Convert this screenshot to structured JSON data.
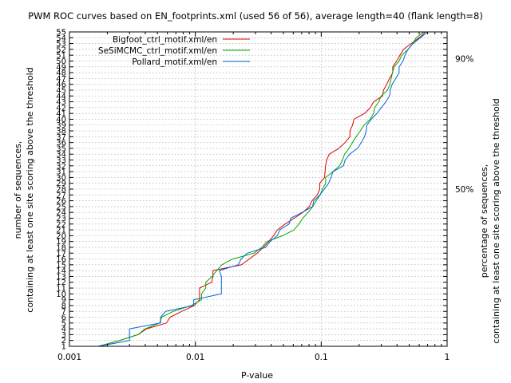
{
  "chart_data": {
    "type": "line",
    "title": "PWM ROC curves based on EN_footprints.xml (used 56 of 56), average length=40 (flank length=8)",
    "xlabel": "P-value",
    "ylabel_line1": "number of sequences,",
    "ylabel_line2": "containing at least one site scoring above the threshold",
    "y2label_line1": "percentage of sequences,",
    "y2label_line2": "containing at least one site scoring above the threshold",
    "xscale": "log",
    "xlim": [
      0.001,
      1
    ],
    "ylim": [
      1,
      55
    ],
    "grid": true,
    "legend_position": "top-right",
    "x_ticks": [
      {
        "value": 0.001,
        "label": "0.001"
      },
      {
        "value": 0.01,
        "label": "0.01"
      },
      {
        "value": 0.1,
        "label": "0.1"
      },
      {
        "value": 1,
        "label": "1"
      }
    ],
    "y_ticks": [
      "1",
      "2",
      "3",
      "4",
      "5",
      "6",
      "7",
      "8",
      "9",
      "10",
      "11",
      "12",
      "13",
      "14",
      "15",
      "16",
      "17",
      "18",
      "19",
      "20",
      "21",
      "22",
      "23",
      "24",
      "25",
      "26",
      "27",
      "28",
      "29",
      "30",
      "31",
      "32",
      "33",
      "34",
      "35",
      "36",
      "37",
      "38",
      "39",
      "40",
      "41",
      "42",
      "43",
      "44",
      "45",
      "46",
      "47",
      "48",
      "49",
      "50",
      "51",
      "52",
      "53",
      "54",
      "55"
    ],
    "y2_ticks": [
      {
        "value": 28,
        "label": "50%"
      },
      {
        "value": 50.4,
        "label": "90%"
      }
    ],
    "series": [
      {
        "name": "Bigfoot_ctrl_motif.xml/en",
        "color": "#dd0000",
        "points": [
          [
            0.0017,
            1
          ],
          [
            0.0025,
            2
          ],
          [
            0.0035,
            3
          ],
          [
            0.0041,
            4
          ],
          [
            0.0059,
            5
          ],
          [
            0.0063,
            6
          ],
          [
            0.0078,
            7
          ],
          [
            0.0098,
            8
          ],
          [
            0.0108,
            9
          ],
          [
            0.0108,
            10
          ],
          [
            0.0108,
            11
          ],
          [
            0.0135,
            12
          ],
          [
            0.0138,
            13
          ],
          [
            0.0138,
            14
          ],
          [
            0.0232,
            15
          ],
          [
            0.0268,
            16
          ],
          [
            0.031,
            17
          ],
          [
            0.0347,
            18
          ],
          [
            0.0383,
            19
          ],
          [
            0.0418,
            20
          ],
          [
            0.0448,
            21
          ],
          [
            0.0516,
            22
          ],
          [
            0.0611,
            23
          ],
          [
            0.0712,
            24
          ],
          [
            0.0804,
            25
          ],
          [
            0.0845,
            26
          ],
          [
            0.0931,
            27
          ],
          [
            0.0974,
            28
          ],
          [
            0.0974,
            29
          ],
          [
            0.1062,
            30
          ],
          [
            0.1072,
            31
          ],
          [
            0.1081,
            32
          ],
          [
            0.1105,
            33
          ],
          [
            0.1159,
            34
          ],
          [
            0.1381,
            35
          ],
          [
            0.1546,
            36
          ],
          [
            0.1692,
            37
          ],
          [
            0.1692,
            38
          ],
          [
            0.1775,
            39
          ],
          [
            0.1818,
            40
          ],
          [
            0.2216,
            41
          ],
          [
            0.2455,
            42
          ],
          [
            0.2607,
            43
          ],
          [
            0.3067,
            44
          ],
          [
            0.3124,
            45
          ],
          [
            0.3316,
            46
          ],
          [
            0.3478,
            47
          ],
          [
            0.3697,
            48
          ],
          [
            0.3697,
            49
          ],
          [
            0.3965,
            50
          ],
          [
            0.4227,
            51
          ],
          [
            0.4505,
            52
          ],
          [
            0.5176,
            53
          ],
          [
            0.6017,
            54
          ],
          [
            0.6726,
            55
          ]
        ]
      },
      {
        "name": "SeSiMCMC_ctrl_motif.xml/en",
        "color": "#00aa00",
        "points": [
          [
            0.0017,
            1
          ],
          [
            0.0025,
            2
          ],
          [
            0.0035,
            3
          ],
          [
            0.004,
            4
          ],
          [
            0.0052,
            5
          ],
          [
            0.0054,
            6
          ],
          [
            0.0067,
            7
          ],
          [
            0.0093,
            8
          ],
          [
            0.0112,
            9
          ],
          [
            0.0112,
            10
          ],
          [
            0.0121,
            11
          ],
          [
            0.0121,
            12
          ],
          [
            0.0136,
            13
          ],
          [
            0.0148,
            14
          ],
          [
            0.0162,
            15
          ],
          [
            0.0198,
            16
          ],
          [
            0.0292,
            17
          ],
          [
            0.0336,
            18
          ],
          [
            0.0371,
            19
          ],
          [
            0.0493,
            20
          ],
          [
            0.0608,
            21
          ],
          [
            0.0664,
            22
          ],
          [
            0.0714,
            23
          ],
          [
            0.0787,
            24
          ],
          [
            0.0857,
            25
          ],
          [
            0.0912,
            26
          ],
          [
            0.0981,
            27
          ],
          [
            0.1022,
            28
          ],
          [
            0.1085,
            29
          ],
          [
            0.1085,
            30
          ],
          [
            0.1236,
            31
          ],
          [
            0.1398,
            32
          ],
          [
            0.1476,
            33
          ],
          [
            0.1531,
            34
          ],
          [
            0.1664,
            35
          ],
          [
            0.1772,
            36
          ],
          [
            0.1894,
            37
          ],
          [
            0.2045,
            38
          ],
          [
            0.2185,
            39
          ],
          [
            0.2445,
            40
          ],
          [
            0.2607,
            41
          ],
          [
            0.2661,
            42
          ],
          [
            0.2865,
            43
          ],
          [
            0.2991,
            44
          ],
          [
            0.3357,
            45
          ],
          [
            0.3509,
            46
          ],
          [
            0.3593,
            47
          ],
          [
            0.3683,
            48
          ],
          [
            0.3786,
            49
          ],
          [
            0.416,
            50
          ],
          [
            0.4354,
            51
          ],
          [
            0.4904,
            52
          ],
          [
            0.5325,
            53
          ],
          [
            0.5694,
            54
          ],
          [
            0.6522,
            55
          ]
        ]
      },
      {
        "name": "Pollard_motif.xml/en",
        "color": "#0066dd",
        "points": [
          [
            0.0017,
            1
          ],
          [
            0.003,
            2
          ],
          [
            0.003,
            3
          ],
          [
            0.003,
            4
          ],
          [
            0.0053,
            5
          ],
          [
            0.0053,
            6
          ],
          [
            0.0058,
            7
          ],
          [
            0.0097,
            8
          ],
          [
            0.0097,
            9
          ],
          [
            0.0161,
            10
          ],
          [
            0.0161,
            11
          ],
          [
            0.0161,
            12
          ],
          [
            0.0161,
            13
          ],
          [
            0.0155,
            14
          ],
          [
            0.0219,
            15
          ],
          [
            0.0231,
            16
          ],
          [
            0.0258,
            17
          ],
          [
            0.0362,
            18
          ],
          [
            0.0392,
            19
          ],
          [
            0.0448,
            20
          ],
          [
            0.0468,
            21
          ],
          [
            0.0555,
            22
          ],
          [
            0.0573,
            23
          ],
          [
            0.0705,
            24
          ],
          [
            0.0852,
            25
          ],
          [
            0.0874,
            26
          ],
          [
            0.0977,
            27
          ],
          [
            0.1057,
            28
          ],
          [
            0.1145,
            29
          ],
          [
            0.1195,
            30
          ],
          [
            0.124,
            31
          ],
          [
            0.1501,
            32
          ],
          [
            0.1549,
            33
          ],
          [
            0.1682,
            34
          ],
          [
            0.1943,
            35
          ],
          [
            0.2081,
            36
          ],
          [
            0.2209,
            37
          ],
          [
            0.2276,
            38
          ],
          [
            0.2307,
            39
          ],
          [
            0.2498,
            40
          ],
          [
            0.2774,
            41
          ],
          [
            0.3002,
            42
          ],
          [
            0.3264,
            43
          ],
          [
            0.3483,
            44
          ],
          [
            0.3537,
            45
          ],
          [
            0.3654,
            46
          ],
          [
            0.3908,
            47
          ],
          [
            0.4158,
            48
          ],
          [
            0.4158,
            49
          ],
          [
            0.4463,
            50
          ],
          [
            0.4627,
            51
          ],
          [
            0.4881,
            52
          ],
          [
            0.5362,
            53
          ],
          [
            0.6129,
            54
          ],
          [
            0.7003,
            55
          ]
        ]
      }
    ]
  }
}
